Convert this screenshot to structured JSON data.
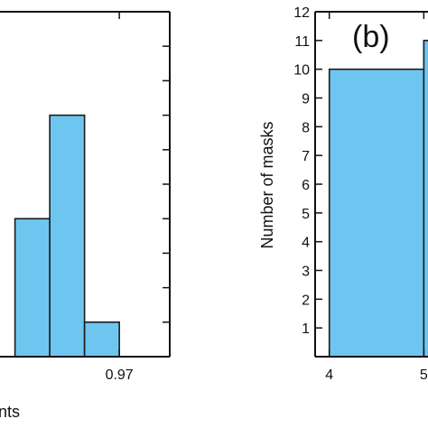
{
  "chart_data": [
    {
      "type": "bar",
      "panel": "a",
      "tick_labels_x": [
        "0.97"
      ],
      "xlabel_visible": "nts",
      "bars": [
        {
          "x_start": 0.94,
          "x_end": 0.95,
          "value": 4
        },
        {
          "x_start": 0.95,
          "x_end": 0.96,
          "value": 7
        },
        {
          "x_start": 0.96,
          "x_end": 0.97,
          "value": 1
        }
      ],
      "xlim": [
        0.9305,
        0.9845
      ],
      "ylim": [
        0,
        10
      ],
      "ytick_count": 10,
      "bar_color": "#6ec6f0"
    },
    {
      "type": "bar",
      "panel": "b",
      "label": "(b)",
      "ylabel": "Number of masks",
      "yticks": [
        "1",
        "2",
        "3",
        "4",
        "5",
        "6",
        "7",
        "8",
        "9",
        "10",
        "11",
        "12"
      ],
      "xticks": [
        "4",
        "5"
      ],
      "bars": [
        {
          "x_start": 4.0,
          "x_end": 5.0,
          "value": 10
        },
        {
          "x_start": 5.0,
          "x_end": 6.0,
          "value": 11
        }
      ],
      "xlim": [
        3.85,
        6.0
      ],
      "ylim": [
        0,
        12
      ],
      "bar_color": "#6ec6f0"
    }
  ]
}
